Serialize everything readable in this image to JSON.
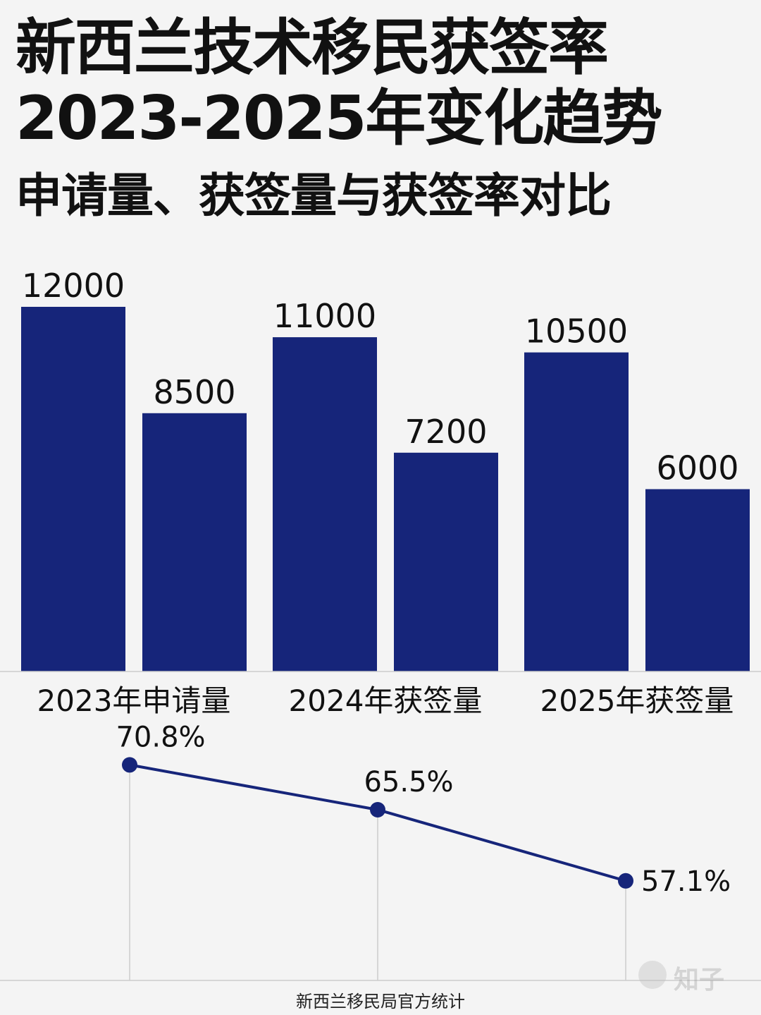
{
  "title": {
    "line1": "新西兰技术移民获签率",
    "line2": "2023-2025年变化趋势"
  },
  "subtitle": "申请量、获签量与获签率对比",
  "colors": {
    "bar": "#16257a",
    "line": "#16257a",
    "grid": "#cccccc"
  },
  "chart_data": [
    {
      "type": "bar",
      "categories": [
        "2023年申请量",
        "2024年获签量",
        "2025年获签量"
      ],
      "series": [
        {
          "values": [
            12000,
            11000,
            10500
          ]
        },
        {
          "values": [
            8500,
            7200,
            6000
          ]
        }
      ],
      "data_labels": [
        [
          "12000",
          "11000",
          "10500"
        ],
        [
          "8500",
          "7200",
          "6000"
        ]
      ],
      "ylim": [
        0,
        12000
      ]
    },
    {
      "type": "line",
      "x": [
        "2023",
        "2024",
        "2025"
      ],
      "values": [
        70.8,
        65.5,
        57.1
      ],
      "data_labels": [
        "70.8%",
        "65.5%",
        "57.1%"
      ],
      "ylim": [
        50,
        75
      ]
    }
  ],
  "source": "新西兰移民局官方统计",
  "watermark": {
    "text": "知子",
    "icon": "chat-bubble-icon"
  }
}
